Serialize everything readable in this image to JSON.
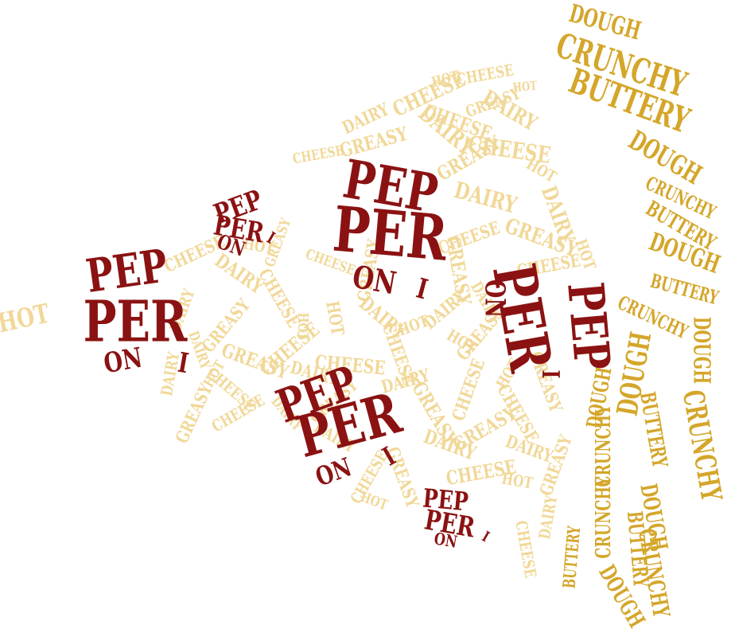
{
  "colors": {
    "background": "#ffffff",
    "pepperoni": "#8b1212",
    "cheese": "#f1d898",
    "crust": "#d4a62a"
  },
  "words": {
    "pepperoni_parts": [
      "PEP",
      "PER",
      "ON",
      "I"
    ],
    "pepperoni_full": "PEPPERONI",
    "cheese": [
      "CHEESE",
      "DAIRY",
      "GREASY",
      "HOT"
    ],
    "crust": [
      "DOUGH",
      "CRUNCHY",
      "BUTTERY"
    ]
  }
}
